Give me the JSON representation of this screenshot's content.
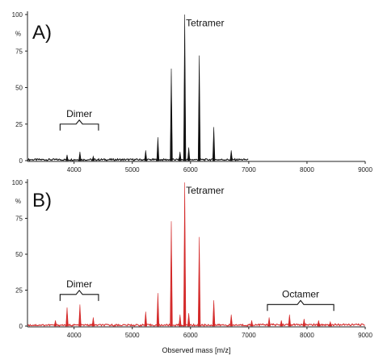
{
  "figure": {
    "xlabel": "Observed mass [m/z]"
  },
  "chart_data": [
    {
      "type": "line",
      "panel_label": "A)",
      "color": "#111111",
      "y_unit": "%",
      "xlim": [
        3200,
        9000
      ],
      "ylim": [
        0,
        100
      ],
      "x_ticks": [
        4000,
        5000,
        6000,
        7000,
        8000,
        9000
      ],
      "y_ticks": [
        0,
        25,
        50,
        75,
        100
      ],
      "trace_end": 7000,
      "peaks": [
        {
          "x": 3880,
          "y": 4
        },
        {
          "x": 4100,
          "y": 6
        },
        {
          "x": 4330,
          "y": 3
        },
        {
          "x": 5230,
          "y": 7
        },
        {
          "x": 5440,
          "y": 16
        },
        {
          "x": 5670,
          "y": 63
        },
        {
          "x": 5820,
          "y": 6
        },
        {
          "x": 5900,
          "y": 100
        },
        {
          "x": 5970,
          "y": 9
        },
        {
          "x": 6150,
          "y": 72
        },
        {
          "x": 6400,
          "y": 23
        },
        {
          "x": 6700,
          "y": 7
        }
      ],
      "annotations": [
        {
          "text": "Dimer",
          "bracket": [
            3760,
            4420
          ],
          "y": 25
        },
        {
          "text": "Tetramer",
          "x": 6250,
          "y": 92
        }
      ]
    },
    {
      "type": "line",
      "panel_label": "B)",
      "color": "#d42a2a",
      "y_unit": "%",
      "xlim": [
        3200,
        9000
      ],
      "ylim": [
        0,
        100
      ],
      "x_ticks": [
        4000,
        5000,
        6000,
        7000,
        8000,
        9000
      ],
      "y_ticks": [
        0,
        25,
        50,
        75,
        100
      ],
      "trace_end": 9000,
      "peaks": [
        {
          "x": 3680,
          "y": 4
        },
        {
          "x": 3880,
          "y": 13
        },
        {
          "x": 4100,
          "y": 15
        },
        {
          "x": 4330,
          "y": 6
        },
        {
          "x": 5230,
          "y": 10
        },
        {
          "x": 5440,
          "y": 23
        },
        {
          "x": 5670,
          "y": 73
        },
        {
          "x": 5820,
          "y": 8
        },
        {
          "x": 5900,
          "y": 100
        },
        {
          "x": 5970,
          "y": 9
        },
        {
          "x": 6150,
          "y": 62
        },
        {
          "x": 6400,
          "y": 18
        },
        {
          "x": 6700,
          "y": 8
        },
        {
          "x": 7050,
          "y": 4
        },
        {
          "x": 7350,
          "y": 6
        },
        {
          "x": 7560,
          "y": 4
        },
        {
          "x": 7700,
          "y": 8
        },
        {
          "x": 7950,
          "y": 5
        },
        {
          "x": 8200,
          "y": 4
        },
        {
          "x": 8400,
          "y": 3
        }
      ],
      "annotations": [
        {
          "text": "Dimer",
          "bracket": [
            3760,
            4420
          ],
          "y": 22
        },
        {
          "text": "Tetramer",
          "x": 6250,
          "y": 92
        },
        {
          "text": "Octamer",
          "bracket": [
            7320,
            8460
          ],
          "y": 15
        }
      ]
    }
  ]
}
